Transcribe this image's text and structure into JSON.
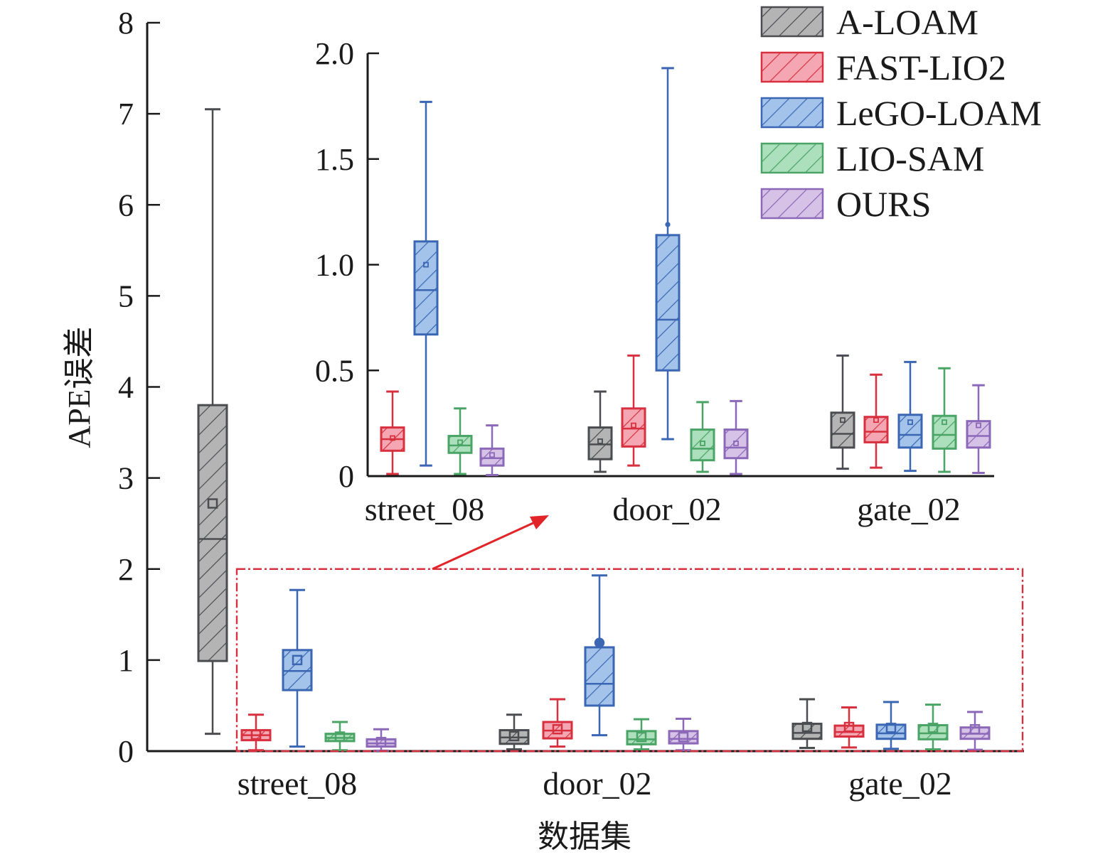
{
  "chart_data": {
    "type": "box",
    "title": "",
    "xlabel": "数据集",
    "ylabel": "APE误差",
    "categories": [
      "street_08",
      "door_02",
      "gate_02"
    ],
    "legend": {
      "placement": "top-right",
      "entries": [
        "A-LOAM",
        "FAST-LIO2",
        "LeGO-LOAM",
        "LIO-SAM",
        "OURS"
      ]
    },
    "colors": {
      "A-LOAM": {
        "stroke": "#4a4c50",
        "fill": "#b4b4b4"
      },
      "FAST-LIO2": {
        "stroke": "#d8303f",
        "fill": "#f4a7b2"
      },
      "LeGO-LOAM": {
        "stroke": "#3a66b4",
        "fill": "#a3c3ea"
      },
      "LIO-SAM": {
        "stroke": "#4aa466",
        "fill": "#acdfbc"
      },
      "OURS": {
        "stroke": "#8c68b8",
        "fill": "#d6c2e6"
      }
    },
    "main_axis": {
      "ylim": [
        0,
        8
      ],
      "yticks": [
        "0",
        "1",
        "2",
        "3",
        "4",
        "5",
        "6",
        "7",
        "8"
      ]
    },
    "inset_axis": {
      "ylim": [
        0,
        2.0
      ],
      "yticks": [
        "0",
        "0.5",
        "1.0",
        "1.5",
        "2.0"
      ],
      "zoom_region": {
        "ylim": [
          0,
          2.0
        ],
        "note": "dash-dot red box in main plot with arrow pointing to inset"
      }
    },
    "series": [
      {
        "name": "A-LOAM",
        "boxes": [
          {
            "category": "street_08",
            "min": 0.19,
            "q1": 0.99,
            "median": 2.33,
            "q3": 3.8,
            "max": 7.05,
            "mean": 2.72,
            "inset": false
          },
          {
            "category": "door_02",
            "min": 0.02,
            "q1": 0.08,
            "median": 0.15,
            "q3": 0.23,
            "max": 0.4,
            "mean": 0.165,
            "inset": true
          },
          {
            "category": "gate_02",
            "min": 0.035,
            "q1": 0.135,
            "median": 0.2,
            "q3": 0.3,
            "max": 0.57,
            "mean": 0.265,
            "inset": true
          }
        ]
      },
      {
        "name": "FAST-LIO2",
        "boxes": [
          {
            "category": "street_08",
            "min": 0.01,
            "q1": 0.12,
            "median": 0.175,
            "q3": 0.23,
            "max": 0.4,
            "mean": 0.18,
            "inset": true
          },
          {
            "category": "door_02",
            "min": 0.05,
            "q1": 0.14,
            "median": 0.225,
            "q3": 0.32,
            "max": 0.57,
            "mean": 0.24,
            "inset": true
          },
          {
            "category": "gate_02",
            "min": 0.04,
            "q1": 0.16,
            "median": 0.21,
            "q3": 0.28,
            "max": 0.48,
            "mean": 0.265,
            "inset": true
          }
        ]
      },
      {
        "name": "LeGO-LOAM",
        "boxes": [
          {
            "category": "street_08",
            "min": 0.05,
            "q1": 0.67,
            "median": 0.88,
            "q3": 1.11,
            "max": 1.77,
            "mean": 1.0,
            "inset": true
          },
          {
            "category": "door_02",
            "min": 0.175,
            "q1": 0.5,
            "median": 0.74,
            "q3": 1.14,
            "max": 1.93,
            "mean": 1.19,
            "inset": true
          },
          {
            "category": "gate_02",
            "min": 0.025,
            "q1": 0.135,
            "median": 0.195,
            "q3": 0.29,
            "max": 0.54,
            "mean": 0.255,
            "inset": true
          }
        ]
      },
      {
        "name": "LIO-SAM",
        "boxes": [
          {
            "category": "street_08",
            "min": 0.01,
            "q1": 0.11,
            "median": 0.145,
            "q3": 0.19,
            "max": 0.32,
            "mean": 0.16,
            "inset": true
          },
          {
            "category": "door_02",
            "min": 0.02,
            "q1": 0.075,
            "median": 0.13,
            "q3": 0.22,
            "max": 0.35,
            "mean": 0.155,
            "inset": true
          },
          {
            "category": "gate_02",
            "min": 0.02,
            "q1": 0.13,
            "median": 0.195,
            "q3": 0.285,
            "max": 0.51,
            "mean": 0.255,
            "inset": true
          }
        ]
      },
      {
        "name": "OURS",
        "boxes": [
          {
            "category": "street_08",
            "min": 0.005,
            "q1": 0.05,
            "median": 0.085,
            "q3": 0.13,
            "max": 0.24,
            "mean": 0.1,
            "inset": true
          },
          {
            "category": "door_02",
            "min": 0.01,
            "q1": 0.085,
            "median": 0.135,
            "q3": 0.22,
            "max": 0.355,
            "mean": 0.155,
            "inset": true
          },
          {
            "category": "gate_02",
            "min": 0.015,
            "q1": 0.135,
            "median": 0.19,
            "q3": 0.26,
            "max": 0.43,
            "mean": 0.24,
            "inset": true
          }
        ]
      }
    ]
  }
}
